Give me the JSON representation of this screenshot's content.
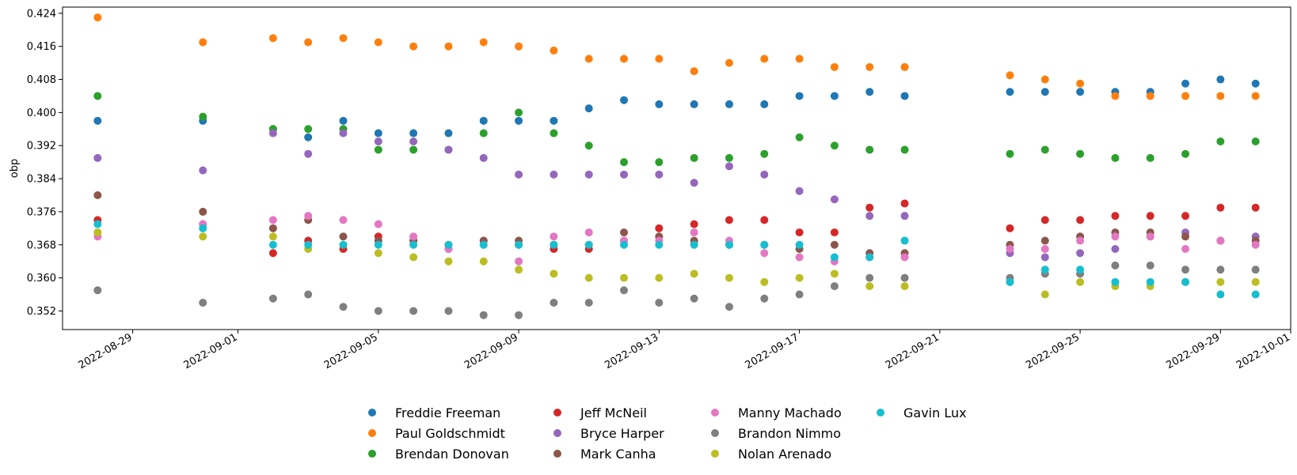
{
  "chart_data": {
    "type": "scatter",
    "title": "",
    "xlabel": "",
    "ylabel": "obp",
    "ylim": [
      0.3475,
      0.4255
    ],
    "xlim": [
      "2022-08-27",
      "2022-10-01"
    ],
    "x_ticks": [
      "2022-08-29",
      "2022-09-01",
      "2022-09-05",
      "2022-09-09",
      "2022-09-13",
      "2022-09-17",
      "2022-09-21",
      "2022-09-25",
      "2022-09-29",
      "2022-10-01"
    ],
    "y_ticks": [
      "0.352",
      "0.360",
      "0.368",
      "0.376",
      "0.384",
      "0.392",
      "0.400",
      "0.408",
      "0.416",
      "0.424"
    ],
    "grid": false,
    "legend_position": "bottom-center",
    "dates": [
      "2022-08-28",
      "2022-08-31",
      "2022-09-02",
      "2022-09-03",
      "2022-09-04",
      "2022-09-05",
      "2022-09-06",
      "2022-09-07",
      "2022-09-08",
      "2022-09-09",
      "2022-09-10",
      "2022-09-11",
      "2022-09-12",
      "2022-09-13",
      "2022-09-14",
      "2022-09-15",
      "2022-09-16",
      "2022-09-17",
      "2022-09-18",
      "2022-09-19",
      "2022-09-20",
      "2022-09-23",
      "2022-09-24",
      "2022-09-25",
      "2022-09-26",
      "2022-09-27",
      "2022-09-28",
      "2022-09-29",
      "2022-09-30"
    ],
    "series": [
      {
        "name": "Freddie Freeman",
        "color": "#1f77b4",
        "values": [
          0.398,
          0.398,
          0.396,
          0.394,
          0.398,
          0.395,
          0.395,
          0.395,
          0.398,
          0.398,
          0.398,
          0.401,
          0.403,
          0.402,
          0.402,
          0.402,
          0.402,
          0.404,
          0.404,
          0.405,
          0.404,
          0.405,
          0.405,
          0.405,
          0.405,
          0.405,
          0.407,
          0.408,
          0.407
        ]
      },
      {
        "name": "Paul Goldschmidt",
        "color": "#ff7f0e",
        "values": [
          0.423,
          0.417,
          0.418,
          0.417,
          0.418,
          0.417,
          0.416,
          0.416,
          0.417,
          0.416,
          0.415,
          0.413,
          0.413,
          0.413,
          0.41,
          0.412,
          0.413,
          0.413,
          0.411,
          0.411,
          0.411,
          0.409,
          0.408,
          0.407,
          0.404,
          0.404,
          0.404,
          0.404,
          0.404
        ]
      },
      {
        "name": "Brendan Donovan",
        "color": "#2ca02c",
        "values": [
          0.404,
          0.399,
          0.396,
          0.396,
          0.396,
          0.391,
          0.391,
          0.391,
          0.395,
          0.4,
          0.395,
          0.392,
          0.388,
          0.388,
          0.389,
          0.389,
          0.39,
          0.394,
          0.392,
          0.391,
          0.391,
          0.39,
          0.391,
          0.39,
          0.389,
          0.389,
          0.39,
          0.393,
          0.393
        ]
      },
      {
        "name": "Jeff McNeil",
        "color": "#d62728",
        "values": [
          0.374,
          0.373,
          0.366,
          0.369,
          0.367,
          0.37,
          0.369,
          0.367,
          0.369,
          0.368,
          0.367,
          0.367,
          0.369,
          0.372,
          0.373,
          0.374,
          0.374,
          0.371,
          0.371,
          0.377,
          0.378,
          0.372,
          0.374,
          0.374,
          0.375,
          0.375,
          0.375,
          0.377,
          0.377
        ]
      },
      {
        "name": "Bryce Harper",
        "color": "#9467bd",
        "values": [
          0.389,
          0.386,
          0.395,
          0.39,
          0.395,
          0.393,
          0.393,
          0.391,
          0.389,
          0.385,
          0.385,
          0.385,
          0.385,
          0.385,
          0.383,
          0.387,
          0.385,
          0.381,
          0.379,
          0.375,
          0.375,
          0.366,
          0.365,
          0.366,
          0.367,
          0.37,
          0.371,
          0.369,
          0.37
        ]
      },
      {
        "name": "Mark Canha",
        "color": "#8c564b",
        "values": [
          0.38,
          0.376,
          0.372,
          0.374,
          0.37,
          0.369,
          0.369,
          0.368,
          0.369,
          0.369,
          0.368,
          0.368,
          0.371,
          0.37,
          0.369,
          0.368,
          0.368,
          0.367,
          0.368,
          0.366,
          0.366,
          0.368,
          0.369,
          0.37,
          0.371,
          0.371,
          0.37,
          0.369,
          0.369
        ]
      },
      {
        "name": "Manny Machado",
        "color": "#e377c2",
        "values": [
          0.37,
          0.373,
          0.374,
          0.375,
          0.374,
          0.373,
          0.37,
          0.367,
          0.368,
          0.364,
          0.37,
          0.371,
          0.369,
          0.369,
          0.371,
          0.369,
          0.366,
          0.365,
          0.364,
          0.365,
          0.365,
          0.367,
          0.367,
          0.369,
          0.37,
          0.37,
          0.367,
          0.369,
          0.368
        ]
      },
      {
        "name": "Brandon Nimmo",
        "color": "#7f7f7f",
        "values": [
          0.357,
          0.354,
          0.355,
          0.356,
          0.353,
          0.352,
          0.352,
          0.352,
          0.351,
          0.351,
          0.354,
          0.354,
          0.357,
          0.354,
          0.355,
          0.353,
          0.355,
          0.356,
          0.358,
          0.36,
          0.36,
          0.36,
          0.361,
          0.361,
          0.363,
          0.363,
          0.362,
          0.362,
          0.362
        ]
      },
      {
        "name": "Nolan Arenado",
        "color": "#bcbd22",
        "values": [
          0.371,
          0.37,
          0.37,
          0.367,
          0.368,
          0.366,
          0.365,
          0.364,
          0.364,
          0.362,
          0.361,
          0.36,
          0.36,
          0.36,
          0.361,
          0.36,
          0.359,
          0.36,
          0.361,
          0.358,
          0.358,
          0.359,
          0.356,
          0.359,
          0.358,
          0.358,
          0.359,
          0.359,
          0.359
        ]
      },
      {
        "name": "Gavin Lux",
        "color": "#17becf",
        "values": [
          0.373,
          0.372,
          0.368,
          0.368,
          0.368,
          0.368,
          0.368,
          0.368,
          0.368,
          0.368,
          0.368,
          0.368,
          0.368,
          0.368,
          0.368,
          0.368,
          0.368,
          0.368,
          0.365,
          0.365,
          0.369,
          0.359,
          0.362,
          0.362,
          0.359,
          0.359,
          0.359,
          0.356,
          0.356
        ]
      }
    ]
  }
}
